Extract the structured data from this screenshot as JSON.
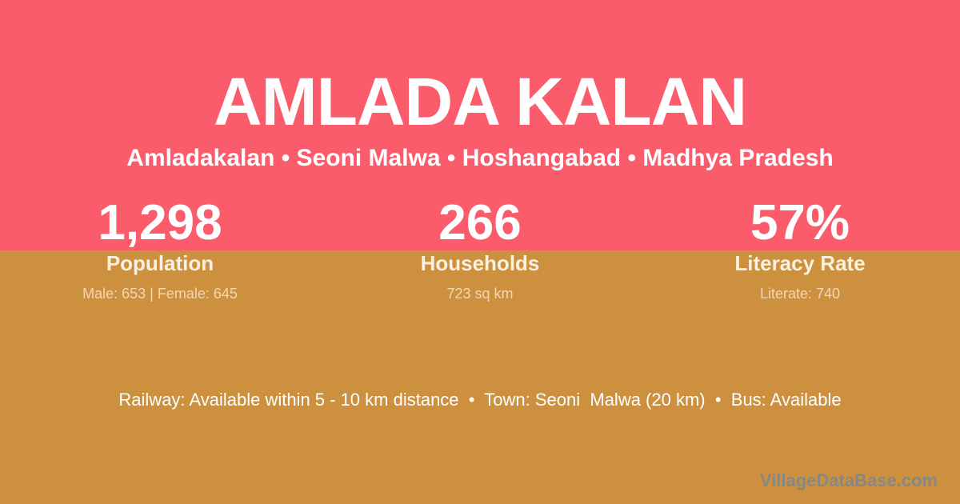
{
  "header": {
    "title": "AMLADA KALAN",
    "breadcrumb": "Amladakalan • Seoni Malwa • Hoshangabad • Madhya Pradesh"
  },
  "stats": [
    {
      "value": "1,298",
      "label": "Population",
      "detail": "Male: 653 | Female: 645"
    },
    {
      "value": "266",
      "label": "Households",
      "detail": "723 sq km"
    },
    {
      "value": "57%",
      "label": "Literacy Rate",
      "detail": "Literate: 740"
    }
  ],
  "footer": {
    "amenities": "Railway: Available within 5 - 10 km distance  •  Town: Seoni  Malwa (20 km)  •  Bus: Available",
    "watermark": "VillageDataBase.com"
  },
  "colors": {
    "accent_pink": "#FB5C6B",
    "accent_gold": "#CD903F",
    "text_white": "#FFFFFF",
    "text_cream": "#F9F0DF",
    "watermark_gray": "#868881"
  }
}
